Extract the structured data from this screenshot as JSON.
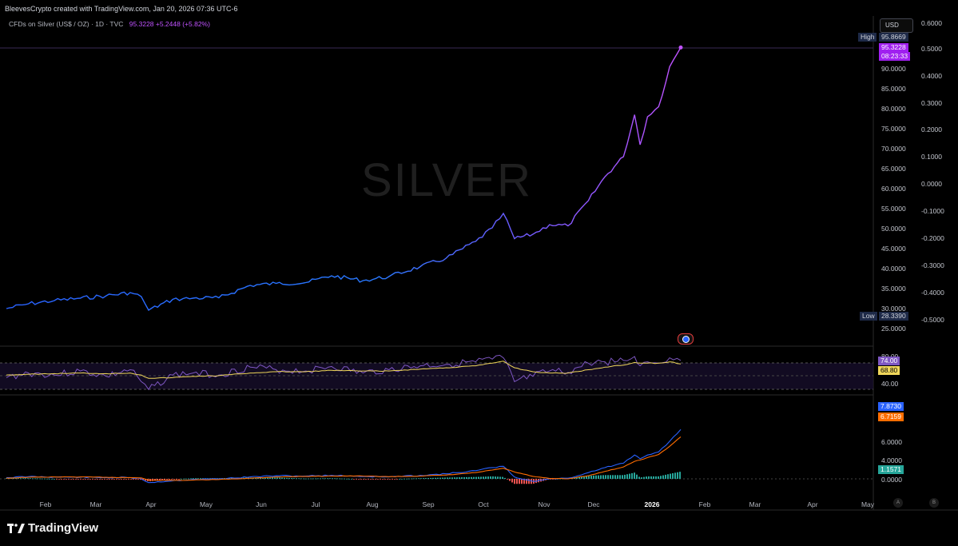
{
  "header": {
    "attribution": "BleevesCrypto created with TradingView.com, Jan 20, 2026 07:36 UTC-6",
    "symbol_line": "CFDs on Silver (US$ / OZ) · 1D · TVC",
    "price_change": "95.3228  +5.2448 (+5.82%)",
    "currency_button": "USD"
  },
  "watermark": "SILVER",
  "price_axis": {
    "ticks": [
      "90.0000",
      "85.0000",
      "80.0000",
      "75.0000",
      "70.0000",
      "65.0000",
      "60.0000",
      "55.0000",
      "50.0000",
      "45.0000",
      "40.0000",
      "35.0000",
      "30.0000",
      "25.0000"
    ],
    "secondary_ticks": [
      "0.6000",
      "0.5000",
      "0.4000",
      "0.3000",
      "0.2000",
      "0.1000",
      "0.0000",
      "-0.1000",
      "-0.2000",
      "-0.3000",
      "-0.4000",
      "-0.5000"
    ],
    "high_label": "High",
    "high_value": "95.8669",
    "last_price": "95.3228",
    "countdown": "08:23:33",
    "low_label": "Low",
    "low_value": "28.3390"
  },
  "rsi_axis": {
    "ticks": [
      "80.00",
      "40.00"
    ],
    "rsi_value": "74.00",
    "rsi_ma_value": "68.80"
  },
  "macd_axis": {
    "ticks": [
      "6.0000",
      "4.0000",
      "2.0000",
      "0.0000"
    ],
    "macd_value": "7.8730",
    "signal_value": "6.7159",
    "hist_value": "1.1571"
  },
  "time_axis": {
    "months": [
      "Feb",
      "Mar",
      "Apr",
      "May",
      "Jun",
      "Jul",
      "Aug",
      "Sep",
      "Oct",
      "Nov",
      "Dec",
      "2026",
      "Feb",
      "Mar",
      "Apr",
      "May"
    ],
    "scale_buttons": [
      "A",
      "B"
    ]
  },
  "brand": "TradingView",
  "colors": {
    "price_line_start": "#2962ff",
    "price_line_end": "#c052ff",
    "rsi": "#7e57c2",
    "rsi_ma": "#f0d75a",
    "macd": "#2962ff",
    "signal": "#ff6d00",
    "hist_pos": "#26a69a",
    "hist_neg": "#ef5350"
  },
  "chart_data": [
    {
      "type": "line",
      "title": "CFDs on Silver (US$ / OZ) · 1D · TVC",
      "x": [
        "2025-01-20",
        "2025-02-01",
        "2025-02-15",
        "2025-03-01",
        "2025-03-15",
        "2025-03-28",
        "2025-04-03",
        "2025-04-07",
        "2025-04-20",
        "2025-05-01",
        "2025-05-15",
        "2025-06-01",
        "2025-06-15",
        "2025-07-01",
        "2025-07-15",
        "2025-08-01",
        "2025-08-15",
        "2025-09-01",
        "2025-09-15",
        "2025-10-01",
        "2025-10-10",
        "2025-10-16",
        "2025-10-22",
        "2025-11-01",
        "2025-11-10",
        "2025-11-20",
        "2025-12-01",
        "2025-12-10",
        "2025-12-20",
        "2025-12-26",
        "2025-12-29",
        "2026-01-02",
        "2026-01-08",
        "2026-01-14",
        "2026-01-20"
      ],
      "values": [
        30.0,
        31.2,
        32.0,
        32.6,
        33.2,
        34.0,
        33.0,
        29.6,
        32.3,
        32.6,
        32.7,
        35.8,
        36.3,
        36.5,
        38.2,
        37.0,
        38.0,
        40.5,
        42.6,
        46.8,
        50.2,
        53.8,
        47.5,
        48.6,
        51.0,
        50.7,
        57.0,
        63.0,
        68.0,
        78.5,
        71.0,
        78.0,
        80.5,
        90.5,
        95.32
      ],
      "ylim": [
        25,
        97
      ],
      "high": 95.8669,
      "low": 28.339
    },
    {
      "type": "line",
      "series": [
        {
          "values": [
            48,
            55,
            52,
            58,
            50,
            60,
            42,
            30,
            52,
            55,
            52,
            64,
            60,
            58,
            65,
            55,
            60,
            66,
            68,
            72,
            76,
            78,
            42,
            50,
            58,
            56,
            70,
            72,
            74,
            80,
            66,
            72,
            70,
            78,
            74
          ]
        },
        {
          "values": [
            52,
            53,
            54,
            55,
            54,
            55,
            52,
            47,
            48,
            50,
            51,
            55,
            57,
            57,
            59,
            58,
            58,
            61,
            63,
            66,
            70,
            73,
            63,
            57,
            55,
            55,
            60,
            64,
            67,
            71,
            70,
            70,
            70,
            72,
            68.8
          ]
        }
      ],
      "ylim": [
        25,
        90
      ]
    },
    {
      "type": "bar",
      "series": [
        {
          "values": [
            0.2,
            0.35,
            0.3,
            0.25,
            0.2,
            0.2,
            0.0,
            -0.6,
            -0.3,
            -0.1,
            0.0,
            0.3,
            0.5,
            0.45,
            0.55,
            0.4,
            0.3,
            0.55,
            0.8,
            1.3,
            1.8,
            2.0,
            0.3,
            -0.4,
            0.0,
            0.1,
            1.0,
            1.8,
            2.5,
            3.8,
            3.2,
            3.8,
            4.3,
            6.0,
            7.873
          ]
        },
        {
          "values": [
            0.1,
            0.25,
            0.3,
            0.3,
            0.25,
            0.2,
            0.15,
            -0.2,
            -0.25,
            -0.2,
            -0.1,
            0.1,
            0.3,
            0.4,
            0.45,
            0.45,
            0.35,
            0.45,
            0.6,
            1.0,
            1.4,
            1.7,
            1.1,
            0.4,
            0.05,
            0.0,
            0.5,
            1.2,
            1.9,
            2.8,
            3.0,
            3.4,
            3.9,
            5.2,
            6.7159
          ]
        }
      ],
      "ylim": [
        -0.8,
        8.5
      ]
    }
  ]
}
